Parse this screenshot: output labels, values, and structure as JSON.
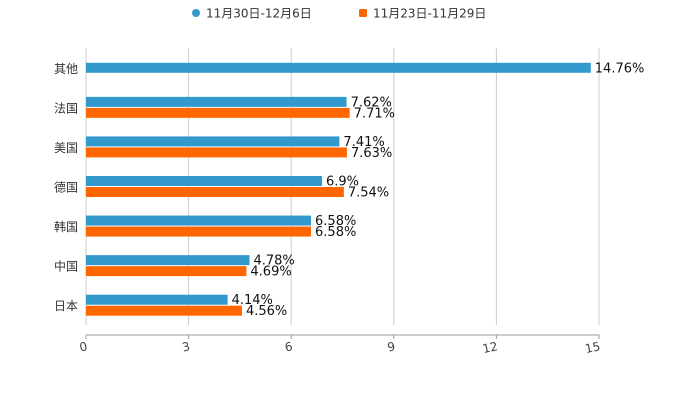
{
  "chart_data": {
    "type": "bar",
    "orientation": "horizontal",
    "categories": [
      "其他",
      "法国",
      "美国",
      "德国",
      "韩国",
      "中国",
      "日本"
    ],
    "series": [
      {
        "name": "11月30日-12月6日",
        "color": "#3399cc",
        "values": [
          14.76,
          7.62,
          7.41,
          6.9,
          6.58,
          4.78,
          4.14
        ],
        "labels": [
          "14.76%",
          "7.62%",
          "7.41%",
          "6.9%",
          "6.58%",
          "4.78%",
          "4.14%"
        ]
      },
      {
        "name": "11月23日-11月29日",
        "color": "#ff6600",
        "values": [
          null,
          7.71,
          7.63,
          7.54,
          6.58,
          4.69,
          4.56
        ],
        "labels": [
          null,
          "7.71%",
          "7.63%",
          "7.54%",
          "6.58%",
          "4.69%",
          "4.56%"
        ]
      }
    ],
    "xlim": [
      0,
      15
    ],
    "xticks": [
      "0",
      "3",
      "6",
      "9",
      "12",
      "15"
    ],
    "grid": true,
    "legend_position": "top-center",
    "title": "",
    "xlabel": "",
    "ylabel": ""
  }
}
